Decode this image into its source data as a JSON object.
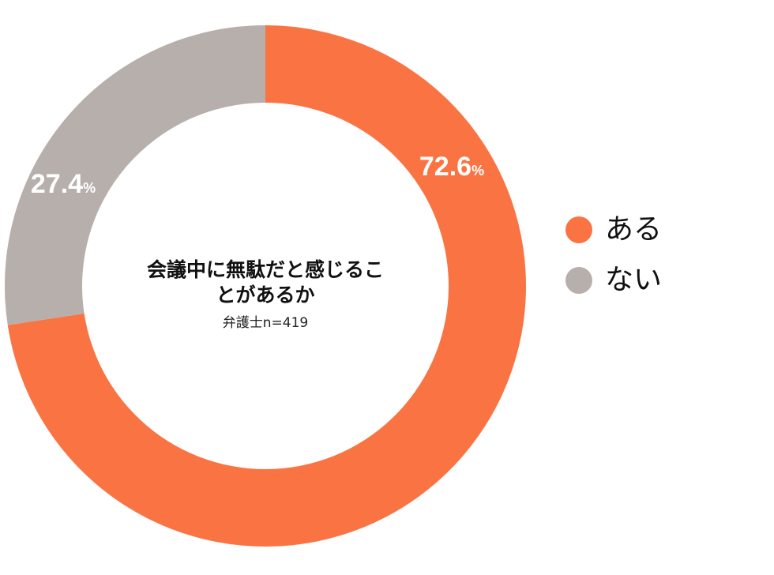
{
  "colors": {
    "aru": "#FA7443",
    "nai": "#B7AFAC",
    "label_text": "#ffffff"
  },
  "center": {
    "title_line1": "会議中に無駄だと感じるこ",
    "title_line2": "とがあるか",
    "subtitle": "弁護士n=419"
  },
  "legend": [
    {
      "label": "ある",
      "color": "#FA7443"
    },
    {
      "label": "ない",
      "color": "#B7AFAC"
    }
  ],
  "chart_data": {
    "type": "pie",
    "donut": true,
    "unit": "%",
    "slices": [
      {
        "label": "ある",
        "value": 72.6,
        "color": "#FA7443"
      },
      {
        "label": "ない",
        "value": 27.4,
        "color": "#B7AFAC"
      }
    ],
    "legend_position": "right"
  }
}
